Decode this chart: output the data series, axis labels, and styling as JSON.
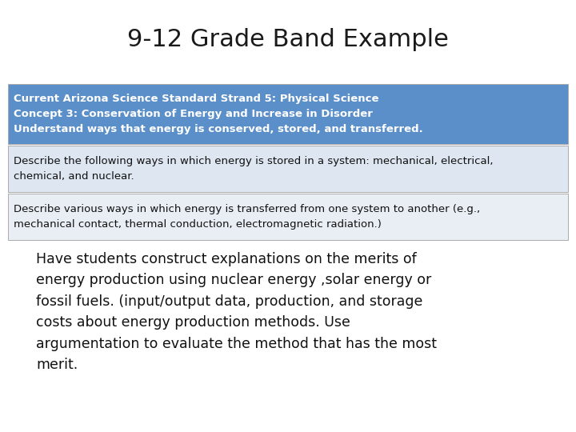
{
  "title": "9-12 Grade Band Example",
  "title_fontsize": 22,
  "background_color": "#ffffff",
  "row1_bg": "#5b8fc9",
  "row2_bg": "#dde6f1",
  "row3_bg": "#e9eef5",
  "row1_text_color": "#ffffff",
  "row2_text_color": "#111111",
  "row3_text_color": "#111111",
  "row1_lines": "Current Arizona Science Standard Strand 5: Physical Science\nConcept 3: Conservation of Energy and Increase in Disorder\nUnderstand ways that energy is conserved, stored, and transferred.",
  "row2_text": "Describe the following ways in which energy is stored in a system: mechanical, electrical,\nchemical, and nuclear.",
  "row3_text": "Describe various ways in which energy is transferred from one system to another (e.g.,\nmechanical contact, thermal conduction, electromagnetic radiation.)",
  "body_text": "Have students construct explanations on the merits of\nenergy production using nuclear energy ,solar energy or\nfossil fuels. (input/output data, production, and storage\ncosts about energy production methods. Use\nargumentation to evaluate the method that has the most\nmerit.",
  "body_fontsize": 12.5,
  "table_fontsize": 9.5,
  "border_color": "#aaaaaa"
}
